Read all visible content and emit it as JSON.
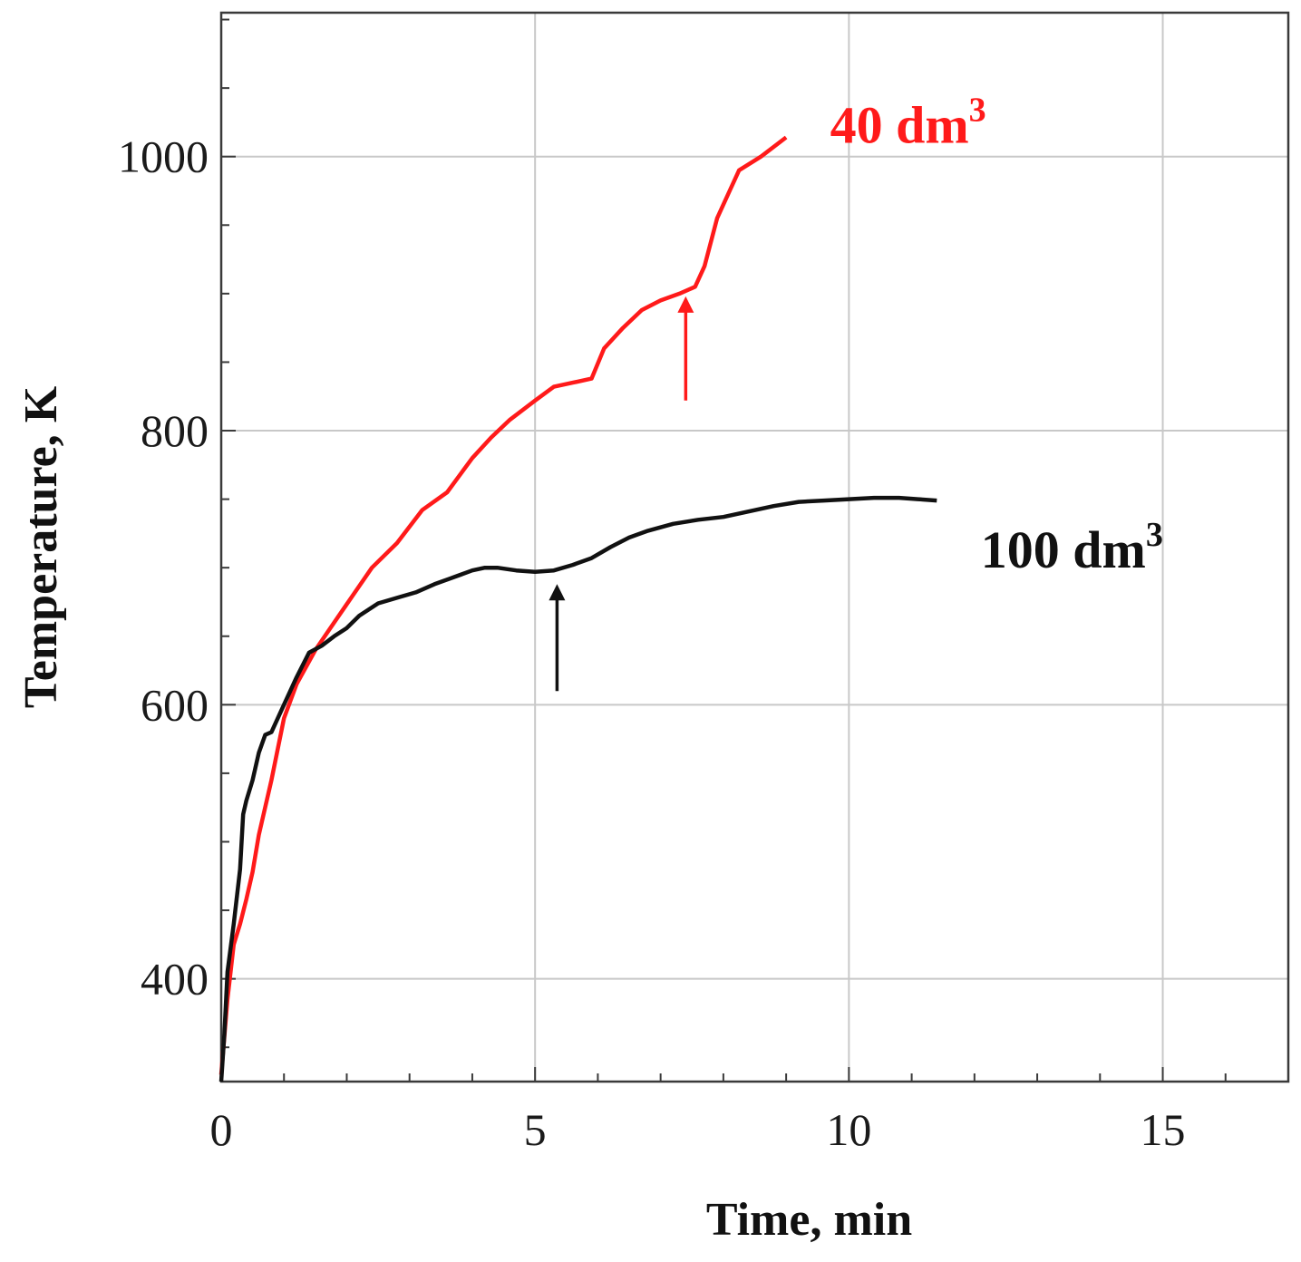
{
  "chart_data": {
    "type": "line",
    "xlabel": "Time, min",
    "ylabel": "Temperature, K",
    "xlim": [
      0,
      17
    ],
    "ylim": [
      325,
      1105
    ],
    "x_ticks": [
      0,
      5,
      10,
      15
    ],
    "x_tick_labels": [
      "0",
      "5",
      "10",
      "15"
    ],
    "y_ticks": [
      400,
      600,
      800,
      1000
    ],
    "y_tick_labels": [
      "400",
      "600",
      "800",
      "1000"
    ],
    "x_minor_step": 1,
    "y_minor_step": 50,
    "grid": true,
    "series": [
      {
        "name": "40 dm",
        "superscript": "3",
        "color": "#ff1a1a",
        "label_pos": [
          9.7,
          1010
        ],
        "arrow": {
          "x": 7.4,
          "y_from": 822,
          "y_to": 898
        },
        "x": [
          0.0,
          0.1,
          0.2,
          0.3,
          0.4,
          0.5,
          0.6,
          0.8,
          1.0,
          1.2,
          1.5,
          1.8,
          2.1,
          2.4,
          2.8,
          3.2,
          3.6,
          4.0,
          4.3,
          4.6,
          5.0,
          5.3,
          5.6,
          5.9,
          6.1,
          6.4,
          6.7,
          7.0,
          7.3,
          7.55,
          7.7,
          7.9,
          8.1,
          8.25,
          8.6,
          9.0
        ],
        "y": [
          330,
          385,
          425,
          440,
          458,
          478,
          505,
          545,
          590,
          615,
          640,
          660,
          680,
          700,
          718,
          742,
          755,
          780,
          795,
          808,
          822,
          832,
          835,
          838,
          860,
          875,
          888,
          895,
          900,
          905,
          920,
          955,
          975,
          990,
          1000,
          1014
        ]
      },
      {
        "name": "100 dm",
        "superscript": "3",
        "color": "#111111",
        "label_pos": [
          12.1,
          700
        ],
        "arrow": {
          "x": 5.35,
          "y_from": 610,
          "y_to": 688
        },
        "x": [
          0.0,
          0.05,
          0.1,
          0.2,
          0.3,
          0.35,
          0.4,
          0.5,
          0.6,
          0.7,
          0.8,
          1.0,
          1.2,
          1.4,
          1.6,
          1.8,
          2.0,
          2.2,
          2.5,
          2.8,
          3.1,
          3.4,
          3.7,
          4.0,
          4.2,
          4.4,
          4.7,
          5.0,
          5.3,
          5.6,
          5.9,
          6.2,
          6.5,
          6.8,
          7.2,
          7.6,
          8.0,
          8.4,
          8.8,
          9.2,
          9.6,
          10.0,
          10.4,
          10.8,
          11.1,
          11.4
        ],
        "y": [
          325,
          360,
          405,
          440,
          480,
          520,
          530,
          545,
          565,
          578,
          580,
          600,
          620,
          638,
          643,
          650,
          656,
          665,
          674,
          678,
          682,
          688,
          693,
          698,
          700,
          700,
          698,
          697,
          698,
          702,
          707,
          715,
          722,
          727,
          732,
          735,
          737,
          741,
          745,
          748,
          749,
          750,
          751,
          751,
          750,
          749
        ]
      }
    ]
  }
}
